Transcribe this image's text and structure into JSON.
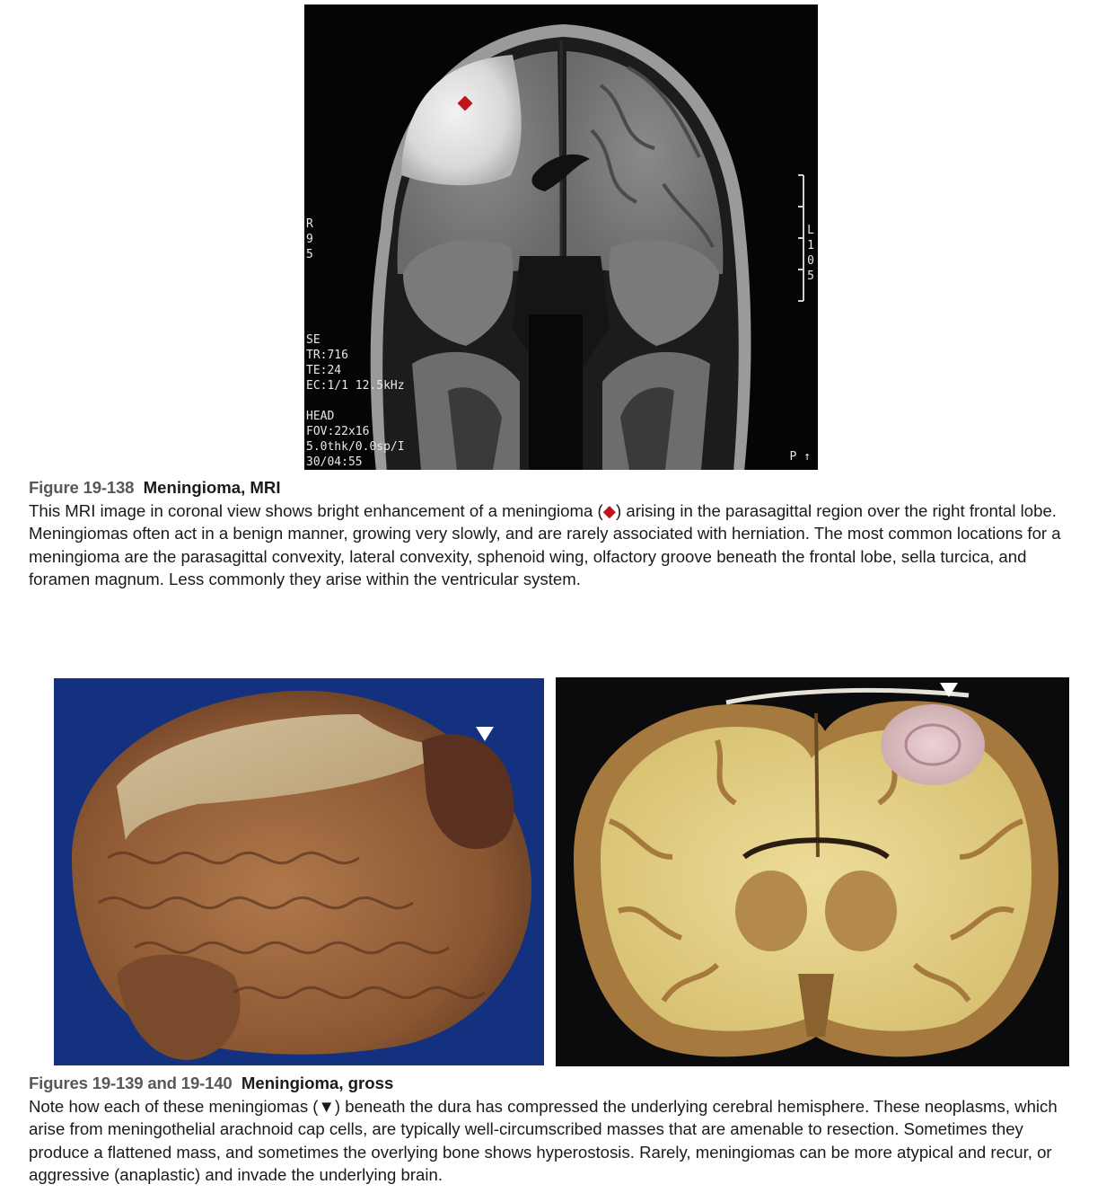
{
  "mri": {
    "left_labels": [
      "R",
      "9",
      "5"
    ],
    "right_labels": [
      "L",
      "1",
      "0",
      "5"
    ],
    "params": [
      "SE",
      "TR:716",
      "TE:24",
      "EC:1/1 12.5kHz",
      "",
      "HEAD",
      "FOV:22x16",
      "5.0thk/0.0sp/I",
      "30/04:55"
    ],
    "corner_label": "P ↑",
    "marker_color": "#c0141b"
  },
  "figure_138": {
    "number": "Figure 19-138",
    "title": "Meningioma, MRI",
    "text_before_marker": "This MRI image in coronal view shows bright enhancement of a meningioma (",
    "marker": "◆",
    "text_after_marker": ") arising in the parasagittal region over the right frontal lobe. Meningiomas often act in a benign manner, growing very slowly, and are rarely associated with herniation. The most common locations for a meningioma are the parasagittal convexity, lateral convexity, sphenoid wing, olfactory groove beneath the frontal lobe, sella turcica, and foramen magnum. Less commonly they arise within the ventricular system."
  },
  "figure_139_140": {
    "number": "Figures 19-139 and 19-140",
    "title": "Meningioma, gross",
    "text_before_marker": "Note how each of these meningiomas (",
    "marker": "▼",
    "text_after_marker": ") beneath the dura has compressed the underlying cerebral hemisphere. These neoplasms, which arise from meningothelial arachnoid cap cells, are typically well-circumscribed masses that are amenable to resection. Sometimes they produce a flattened mass, and sometimes the overlying bone shows hyperostosis. Rarely, meningiomas can be more atypical and recur, or aggressive (anaplastic) and invade the underlying brain."
  },
  "photo_left": {
    "marker": "▼",
    "background": "#13317e"
  },
  "photo_right": {
    "marker": "▼",
    "background": "#0b0b0d"
  }
}
